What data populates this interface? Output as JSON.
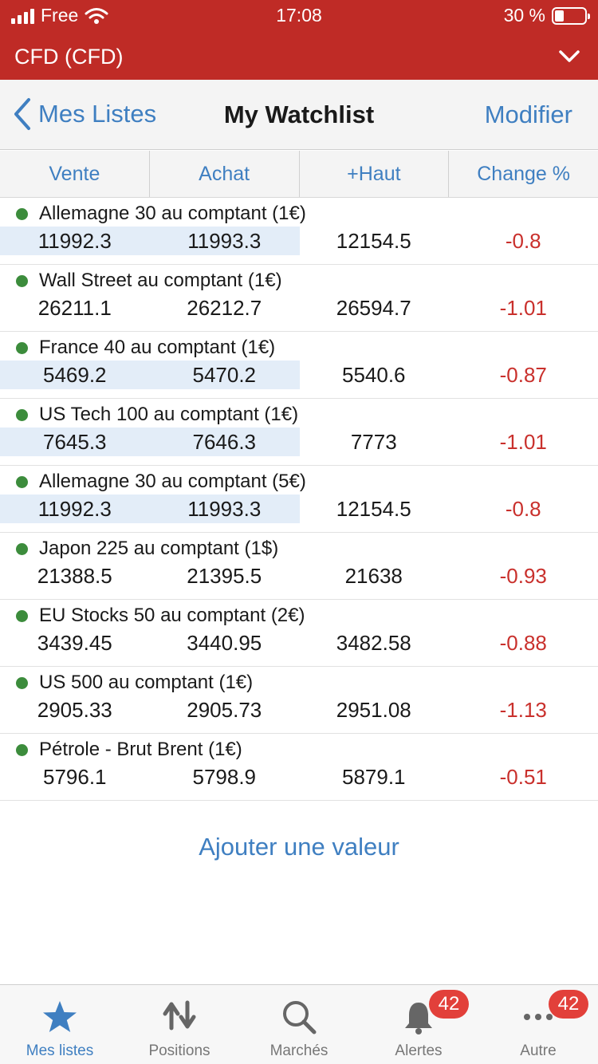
{
  "status_bar": {
    "carrier": "Free",
    "time": "17:08",
    "battery": "30 %",
    "battery_level": 0.3
  },
  "account": {
    "title": "CFD (CFD)"
  },
  "nav": {
    "back_label": "Mes Listes",
    "title": "My Watchlist",
    "edit_label": "Modifier"
  },
  "columns": [
    "Vente",
    "Achat",
    "+Haut",
    "Change %"
  ],
  "rows": [
    {
      "name": "Allemagne 30 au comptant (1€)",
      "sell": "11992.3",
      "buy": "11993.3",
      "high": "12154.5",
      "change": "-0.8",
      "highlight": true
    },
    {
      "name": "Wall Street au comptant (1€)",
      "sell": "26211.1",
      "buy": "26212.7",
      "high": "26594.7",
      "change": "-1.01",
      "highlight": false
    },
    {
      "name": "France 40 au comptant (1€)",
      "sell": "5469.2",
      "buy": "5470.2",
      "high": "5540.6",
      "change": "-0.87",
      "highlight": true
    },
    {
      "name": "US Tech 100 au comptant (1€)",
      "sell": "7645.3",
      "buy": "7646.3",
      "high": "7773",
      "change": "-1.01",
      "highlight": true
    },
    {
      "name": "Allemagne 30 au comptant (5€)",
      "sell": "11992.3",
      "buy": "11993.3",
      "high": "12154.5",
      "change": "-0.8",
      "highlight": true
    },
    {
      "name": "Japon 225 au comptant (1$)",
      "sell": "21388.5",
      "buy": "21395.5",
      "high": "21638",
      "change": "-0.93",
      "highlight": false
    },
    {
      "name": "EU Stocks 50 au comptant (2€)",
      "sell": "3439.45",
      "buy": "3440.95",
      "high": "3482.58",
      "change": "-0.88",
      "highlight": false
    },
    {
      "name": "US 500 au comptant (1€)",
      "sell": "2905.33",
      "buy": "2905.73",
      "high": "2951.08",
      "change": "-1.13",
      "highlight": false
    },
    {
      "name": "Pétrole - Brut Brent (1€)",
      "sell": "5796.1",
      "buy": "5798.9",
      "high": "5879.1",
      "change": "-0.51",
      "highlight": false
    }
  ],
  "add_label": "Ajouter une valeur",
  "tabs": [
    {
      "label": "Mes listes",
      "icon": "star-icon",
      "active": true,
      "badge": ""
    },
    {
      "label": "Positions",
      "icon": "swap-arrows-icon",
      "active": false,
      "badge": ""
    },
    {
      "label": "Marchés",
      "icon": "search-icon",
      "active": false,
      "badge": ""
    },
    {
      "label": "Alertes",
      "icon": "bell-icon",
      "active": false,
      "badge": "42"
    },
    {
      "label": "Autre",
      "icon": "more-icon",
      "active": false,
      "badge": "42"
    }
  ],
  "colors": {
    "brand_red": "#bf2b26",
    "link_blue": "#3f7fc1",
    "negative": "#c9302c",
    "dot_green": "#3c8c3c"
  }
}
